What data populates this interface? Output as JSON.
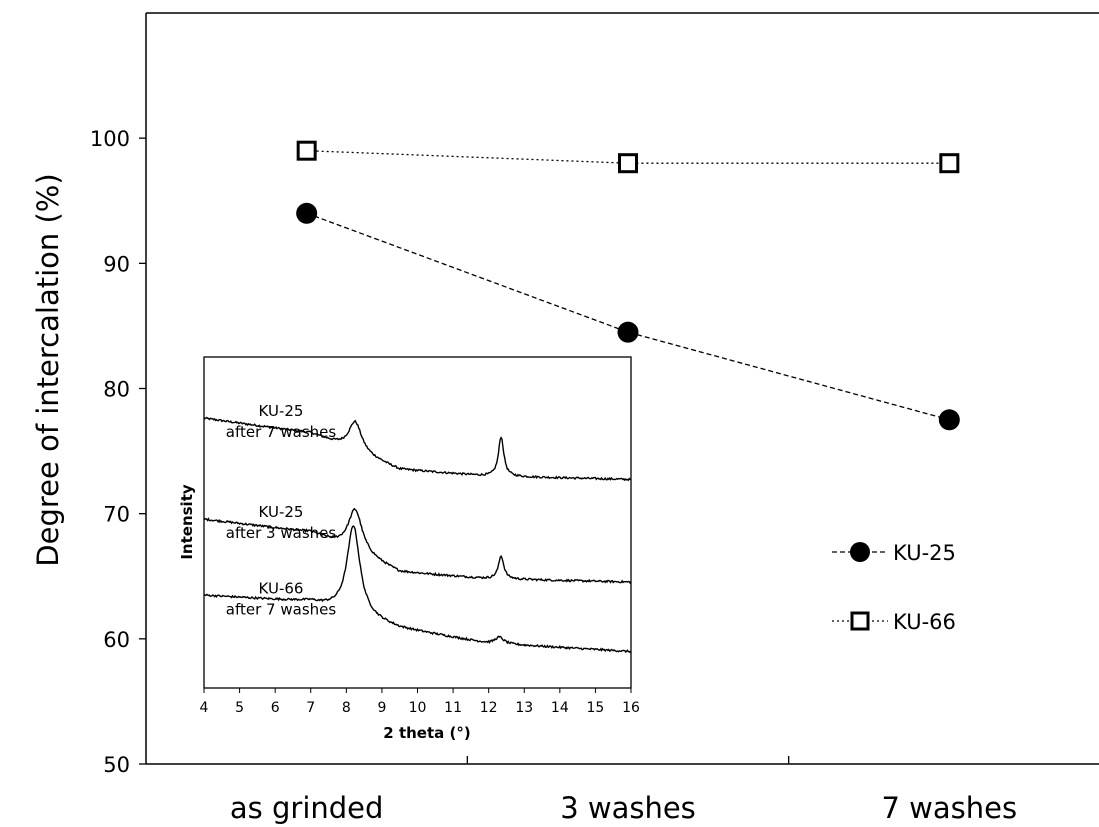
{
  "chart_data": [
    {
      "type": "line",
      "ylabel": "Degree of intercalation (%)",
      "categories": [
        "as grinded",
        "3 washes",
        "7 washes"
      ],
      "ylim": [
        50,
        110
      ],
      "yticks": [
        50,
        60,
        70,
        80,
        90,
        100
      ],
      "grid": false,
      "legend_position": "right",
      "series": [
        {
          "name": "KU-25",
          "marker": "filled-circle",
          "line": "dashed",
          "values": [
            94,
            84.5,
            77.5
          ]
        },
        {
          "name": "KU-66",
          "marker": "open-square",
          "line": "dotted",
          "values": [
            99,
            98,
            98
          ]
        }
      ]
    },
    {
      "type": "line",
      "xlabel": "2 theta (°)",
      "ylabel": "Intensity",
      "xlim": [
        4,
        16
      ],
      "xticks": [
        4,
        5,
        6,
        7,
        8,
        9,
        10,
        11,
        12,
        13,
        14,
        15,
        16
      ],
      "series": [
        {
          "label_line1": "KU-25",
          "label_line2": "after 7 washes",
          "baseline": [
            [
              4,
              0.815
            ],
            [
              7,
              0.77
            ],
            [
              9.5,
              0.66
            ],
            [
              12,
              0.64
            ],
            [
              16,
              0.63
            ]
          ],
          "peaks": [
            [
              8.25,
              0.09,
              0.22
            ],
            [
              12.35,
              0.12,
              0.09
            ]
          ]
        },
        {
          "label_line1": "KU-25",
          "label_line2": "after 3 washes",
          "baseline": [
            [
              4,
              0.51
            ],
            [
              7,
              0.47
            ],
            [
              9.5,
              0.35
            ],
            [
              12,
              0.33
            ],
            [
              16,
              0.32
            ]
          ],
          "peaks": [
            [
              8.25,
              0.13,
              0.24
            ],
            [
              12.35,
              0.07,
              0.09
            ]
          ]
        },
        {
          "label_line1": "KU-66",
          "label_line2": "after 7 washes",
          "baseline": [
            [
              4,
              0.28
            ],
            [
              7,
              0.26
            ],
            [
              9.5,
              0.18
            ],
            [
              12,
              0.135
            ],
            [
              16,
              0.11
            ]
          ],
          "peaks": [
            [
              8.2,
              0.27,
              0.22
            ],
            [
              12.3,
              0.02,
              0.15
            ]
          ]
        }
      ]
    }
  ]
}
